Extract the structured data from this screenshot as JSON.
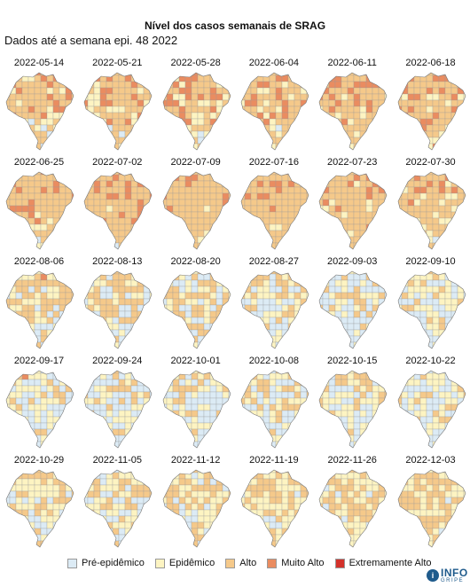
{
  "title": "Nível dos casos semanais de SRAG",
  "subtitle": "Dados até a semana epi. 48 2022",
  "colors": {
    "pre_epidemico": "#dcebf5",
    "epidemico": "#fdf4c2",
    "alto": "#f5c98a",
    "muito_alto": "#ea8c60",
    "extremamente_alto": "#d3322b",
    "border": "#9a9a9a"
  },
  "panels": [
    {
      "date": "2022-05-14",
      "mix": [
        0.12,
        0.18,
        0.5,
        0.2,
        0.0
      ]
    },
    {
      "date": "2022-05-21",
      "mix": [
        0.15,
        0.15,
        0.45,
        0.25,
        0.0
      ]
    },
    {
      "date": "2022-05-28",
      "mix": [
        0.15,
        0.15,
        0.45,
        0.25,
        0.0
      ]
    },
    {
      "date": "2022-06-04",
      "mix": [
        0.1,
        0.15,
        0.5,
        0.25,
        0.0
      ]
    },
    {
      "date": "2022-06-11",
      "mix": [
        0.1,
        0.15,
        0.45,
        0.3,
        0.0
      ]
    },
    {
      "date": "2022-06-18",
      "mix": [
        0.08,
        0.12,
        0.5,
        0.3,
        0.0
      ]
    },
    {
      "date": "2022-06-25",
      "mix": [
        0.05,
        0.1,
        0.6,
        0.25,
        0.0
      ]
    },
    {
      "date": "2022-07-02",
      "mix": [
        0.05,
        0.1,
        0.6,
        0.25,
        0.0
      ]
    },
    {
      "date": "2022-07-09",
      "mix": [
        0.05,
        0.1,
        0.7,
        0.15,
        0.0
      ]
    },
    {
      "date": "2022-07-16",
      "mix": [
        0.05,
        0.1,
        0.65,
        0.2,
        0.0
      ]
    },
    {
      "date": "2022-07-23",
      "mix": [
        0.1,
        0.15,
        0.55,
        0.2,
        0.0
      ]
    },
    {
      "date": "2022-07-30",
      "mix": [
        0.1,
        0.15,
        0.55,
        0.2,
        0.0
      ]
    },
    {
      "date": "2022-08-06",
      "mix": [
        0.25,
        0.25,
        0.45,
        0.05,
        0.0
      ]
    },
    {
      "date": "2022-08-13",
      "mix": [
        0.35,
        0.25,
        0.37,
        0.03,
        0.0
      ]
    },
    {
      "date": "2022-08-20",
      "mix": [
        0.35,
        0.2,
        0.42,
        0.03,
        0.0
      ]
    },
    {
      "date": "2022-08-27",
      "mix": [
        0.4,
        0.25,
        0.32,
        0.03,
        0.0
      ]
    },
    {
      "date": "2022-09-03",
      "mix": [
        0.5,
        0.25,
        0.22,
        0.03,
        0.0
      ]
    },
    {
      "date": "2022-09-10",
      "mix": [
        0.5,
        0.25,
        0.22,
        0.03,
        0.0
      ]
    },
    {
      "date": "2022-09-17",
      "mix": [
        0.5,
        0.25,
        0.22,
        0.03,
        0.0
      ]
    },
    {
      "date": "2022-09-24",
      "mix": [
        0.55,
        0.2,
        0.23,
        0.02,
        0.0
      ]
    },
    {
      "date": "2022-10-01",
      "mix": [
        0.5,
        0.25,
        0.23,
        0.02,
        0.0
      ]
    },
    {
      "date": "2022-10-08",
      "mix": [
        0.35,
        0.3,
        0.33,
        0.02,
        0.0
      ]
    },
    {
      "date": "2022-10-15",
      "mix": [
        0.4,
        0.3,
        0.28,
        0.02,
        0.0
      ]
    },
    {
      "date": "2022-10-22",
      "mix": [
        0.45,
        0.3,
        0.23,
        0.02,
        0.0
      ]
    },
    {
      "date": "2022-10-29",
      "mix": [
        0.35,
        0.3,
        0.33,
        0.02,
        0.0
      ]
    },
    {
      "date": "2022-11-05",
      "mix": [
        0.35,
        0.3,
        0.33,
        0.02,
        0.0
      ]
    },
    {
      "date": "2022-11-12",
      "mix": [
        0.3,
        0.3,
        0.38,
        0.02,
        0.0
      ]
    },
    {
      "date": "2022-11-19",
      "mix": [
        0.2,
        0.35,
        0.43,
        0.02,
        0.0
      ]
    },
    {
      "date": "2022-11-26",
      "mix": [
        0.2,
        0.35,
        0.42,
        0.03,
        0.0
      ]
    },
    {
      "date": "2022-12-03",
      "mix": [
        0.2,
        0.3,
        0.47,
        0.03,
        0.0
      ]
    }
  ],
  "legend": [
    {
      "label": "Pré-epidêmico",
      "color": "#dcebf5"
    },
    {
      "label": "Epidêmico",
      "color": "#fdf4c2"
    },
    {
      "label": "Alto",
      "color": "#f5c98a"
    },
    {
      "label": "Muito Alto",
      "color": "#ea8c60"
    },
    {
      "label": "Extremamente Alto",
      "color": "#d3322b"
    }
  ],
  "logo": {
    "top": "INFO",
    "bottom": "GRIPE",
    "icon": "i"
  }
}
